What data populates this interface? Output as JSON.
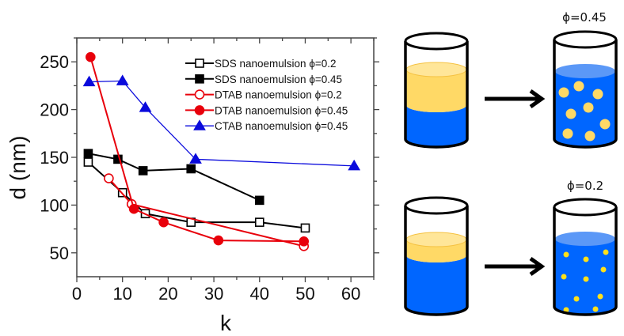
{
  "chart_data": {
    "type": "line",
    "title": "",
    "xlabel": "k",
    "ylabel": "d (nm)",
    "xlim": [
      0,
      65
    ],
    "ylim": [
      25,
      275
    ],
    "xticks": [
      0,
      10,
      20,
      30,
      40,
      50,
      60
    ],
    "yticks": [
      50,
      100,
      150,
      200,
      250
    ],
    "xtick_labels": [
      "0",
      "10",
      "20",
      "30",
      "40",
      "50",
      "60"
    ],
    "ytick_labels": [
      "50",
      "100",
      "150",
      "200",
      "250"
    ],
    "grid": false,
    "legend_position": "top-right",
    "series": [
      {
        "name": "SDS nanoemulsion ϕ=0.2",
        "color": "#000000",
        "marker": "square-open",
        "x": [
          2.5,
          10,
          15,
          25,
          40,
          50
        ],
        "y": [
          145,
          113,
          91,
          82,
          82,
          76
        ]
      },
      {
        "name": "SDS nanoemulsion ϕ=0.45",
        "color": "#000000",
        "marker": "square-filled",
        "x": [
          2.5,
          9,
          14.5,
          25,
          40
        ],
        "y": [
          154,
          148,
          136,
          138,
          105
        ]
      },
      {
        "name": "DTAB nanoemulsion ϕ=0.2",
        "color": "#e8000b",
        "marker": "circle-open",
        "x": [
          7,
          12,
          49.7
        ],
        "y": [
          128,
          101,
          57
        ]
      },
      {
        "name": "DTAB nanoemulsion ϕ=0.45",
        "color": "#e8000b",
        "marker": "circle-filled",
        "x": [
          3,
          12.5,
          19,
          31,
          49.7
        ],
        "y": [
          255,
          96,
          82,
          63,
          62
        ]
      },
      {
        "name": "CTAB nanoemulsion ϕ=0.45",
        "color": "#0a0adc",
        "marker": "triangle-filled",
        "x": [
          2.7,
          10,
          15,
          26,
          60.7
        ],
        "y": [
          229,
          230,
          202,
          148,
          141
        ]
      }
    ]
  },
  "diagram": {
    "phi_high_label": "ϕ=0.45",
    "phi_low_label": "ϕ=0.2",
    "colors": {
      "water": "#0066ff",
      "water_surface": "#5b98f7",
      "oil": "#ffd966",
      "oil_surface": "#ffe699",
      "droplet": "#ffd966",
      "small_droplet": "#ffe01a",
      "outline": "#000000"
    }
  }
}
